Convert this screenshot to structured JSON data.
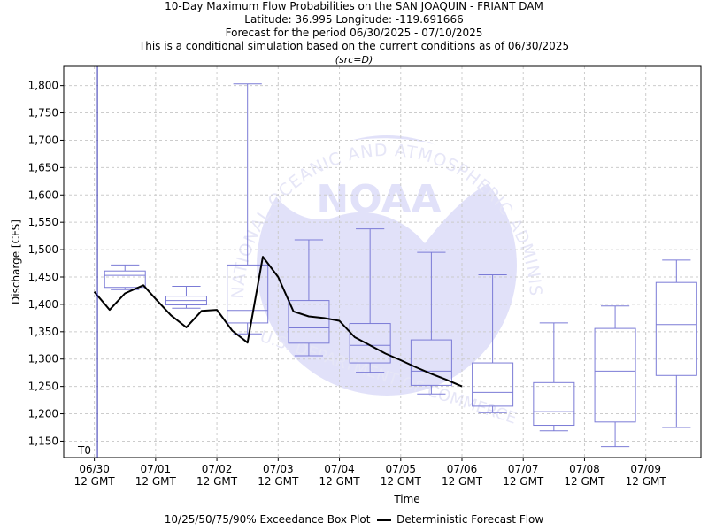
{
  "title": {
    "line1": "10-Day Maximum Flow Probabilities on the SAN JOAQUIN - FRIANT DAM",
    "line2": "Latitude: 36.995 Longitude: -119.691666",
    "line3": "Forecast for the period 06/30/2025 - 07/10/2025",
    "line4": "This is a conditional simulation based on the current conditions as of 06/30/2025",
    "line5": "(src=D)"
  },
  "watermark": {
    "arc_text": "NATIONAL OCEANIC AND ATMOSPHERIC ADMINISTRATION",
    "bottom_text": "U.S. DEPARTMENT OF COMMERCE",
    "logo_text": "NOAA"
  },
  "legend": {
    "box_label": "10/25/50/75/90% Exceedance Box Plot",
    "line_label": "Deterministic Forecast Flow"
  },
  "chart_data": {
    "type": "box",
    "xlabel": "Time",
    "ylabel": "Discharge [CFS]",
    "ylim": [
      1120,
      1835
    ],
    "xlim": [
      -0.5,
      9.9
    ],
    "t0_label": "T0",
    "t0_x": 0.05,
    "yticks": [
      1150,
      1200,
      1250,
      1300,
      1350,
      1400,
      1450,
      1500,
      1550,
      1600,
      1650,
      1700,
      1750,
      1800
    ],
    "xticks": [
      {
        "date": "06/30",
        "time": "12 GMT"
      },
      {
        "date": "07/01",
        "time": "12 GMT"
      },
      {
        "date": "07/02",
        "time": "12 GMT"
      },
      {
        "date": "07/03",
        "time": "12 GMT"
      },
      {
        "date": "07/04",
        "time": "12 GMT"
      },
      {
        "date": "07/05",
        "time": "12 GMT"
      },
      {
        "date": "07/06",
        "time": "12 GMT"
      },
      {
        "date": "07/07",
        "time": "12 GMT"
      },
      {
        "date": "07/08",
        "time": "12 GMT"
      },
      {
        "date": "07/09",
        "time": "12 GMT"
      }
    ],
    "grid": true,
    "colors": {
      "box": "#7b7bd6",
      "line": "#000000",
      "grid": "#cccccc",
      "t0": "#3030b0"
    },
    "boxes": [
      {
        "x": 0.5,
        "p10": 1427,
        "p25": 1431,
        "p50": 1453,
        "p75": 1461,
        "p90": 1472
      },
      {
        "x": 1.5,
        "p10": 1393,
        "p25": 1399,
        "p50": 1407,
        "p75": 1415,
        "p90": 1433
      },
      {
        "x": 2.5,
        "p10": 1346,
        "p25": 1366,
        "p50": 1389,
        "p75": 1472,
        "p90": 1803
      },
      {
        "x": 3.5,
        "p10": 1306,
        "p25": 1329,
        "p50": 1357,
        "p75": 1407,
        "p90": 1518
      },
      {
        "x": 4.5,
        "p10": 1276,
        "p25": 1293,
        "p50": 1325,
        "p75": 1365,
        "p90": 1538
      },
      {
        "x": 5.5,
        "p10": 1236,
        "p25": 1252,
        "p50": 1278,
        "p75": 1335,
        "p90": 1495
      },
      {
        "x": 6.5,
        "p10": 1202,
        "p25": 1214,
        "p50": 1239,
        "p75": 1293,
        "p90": 1454
      },
      {
        "x": 7.5,
        "p10": 1169,
        "p25": 1179,
        "p50": 1204,
        "p75": 1257,
        "p90": 1366
      },
      {
        "x": 8.5,
        "p10": 1140,
        "p25": 1185,
        "p50": 1278,
        "p75": 1356,
        "p90": 1397
      },
      {
        "x": 9.5,
        "p10": 1175,
        "p25": 1270,
        "p50": 1363,
        "p75": 1440,
        "p90": 1481
      }
    ],
    "deterministic": [
      [
        0.0,
        1423
      ],
      [
        0.25,
        1390
      ],
      [
        0.5,
        1420
      ],
      [
        0.8,
        1435
      ],
      [
        1.0,
        1410
      ],
      [
        1.25,
        1380
      ],
      [
        1.5,
        1358
      ],
      [
        1.75,
        1388
      ],
      [
        2.0,
        1390
      ],
      [
        2.25,
        1352
      ],
      [
        2.5,
        1330
      ],
      [
        2.75,
        1487
      ],
      [
        3.0,
        1450
      ],
      [
        3.25,
        1387
      ],
      [
        3.5,
        1378
      ],
      [
        3.75,
        1375
      ],
      [
        4.0,
        1370
      ],
      [
        4.25,
        1340
      ],
      [
        4.5,
        1325
      ],
      [
        4.75,
        1310
      ],
      [
        5.0,
        1298
      ],
      [
        5.25,
        1285
      ],
      [
        5.5,
        1273
      ],
      [
        5.75,
        1262
      ],
      [
        6.0,
        1250
      ]
    ]
  }
}
